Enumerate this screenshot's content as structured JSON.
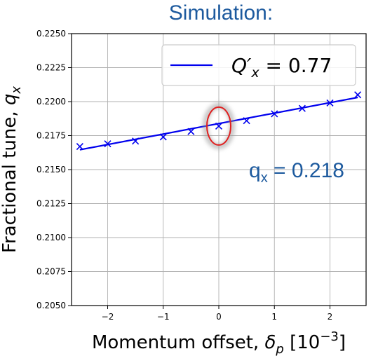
{
  "chart_data": {
    "type": "scatter",
    "title": "Simulation:",
    "xlabel": "Momentum offset, δp [10−3]",
    "ylabel": "Fractional tune, qx",
    "xlim": [
      -2.65,
      2.65
    ],
    "ylim": [
      0.205,
      0.225
    ],
    "x_ticks": [
      -2,
      -1,
      0,
      1,
      2
    ],
    "x_tick_labels": [
      "−2",
      "−1",
      "0",
      "1",
      "2"
    ],
    "y_ticks": [
      0.205,
      0.2075,
      0.21,
      0.2125,
      0.215,
      0.2175,
      0.22,
      0.2225,
      0.225
    ],
    "y_tick_labels": [
      "0.2050",
      "0.2075",
      "0.2100",
      "0.2125",
      "0.2150",
      "0.2175",
      "0.2200",
      "0.2225",
      "0.2250"
    ],
    "grid": true,
    "legend_position": "top-right",
    "series": [
      {
        "kind": "markers",
        "marker": "x",
        "color": "#0000ee",
        "x": [
          -2.5,
          -2.0,
          -1.5,
          -1.0,
          -0.5,
          0.0,
          0.5,
          1.0,
          1.5,
          2.0,
          2.5
        ],
        "y": [
          0.2167,
          0.2169,
          0.2171,
          0.2174,
          0.2178,
          0.2182,
          0.2186,
          0.2191,
          0.2195,
          0.2199,
          0.2205
        ]
      },
      {
        "kind": "line",
        "name": "Q′x = 0.77",
        "color": "#0000ee",
        "x": [
          -2.5,
          2.5
        ],
        "y": [
          0.21646,
          0.22031
        ]
      }
    ],
    "annotations": [
      {
        "text_main": "q",
        "text_sub": "x",
        "text_rest": " = 0.218",
        "color": "#1d5a9e"
      }
    ],
    "highlight": {
      "x": 0.0,
      "y": 0.2182,
      "color": "#e02020"
    }
  },
  "legend": {
    "label_main": "Q′",
    "label_sub": "x",
    "label_rest": " =  0.77"
  }
}
